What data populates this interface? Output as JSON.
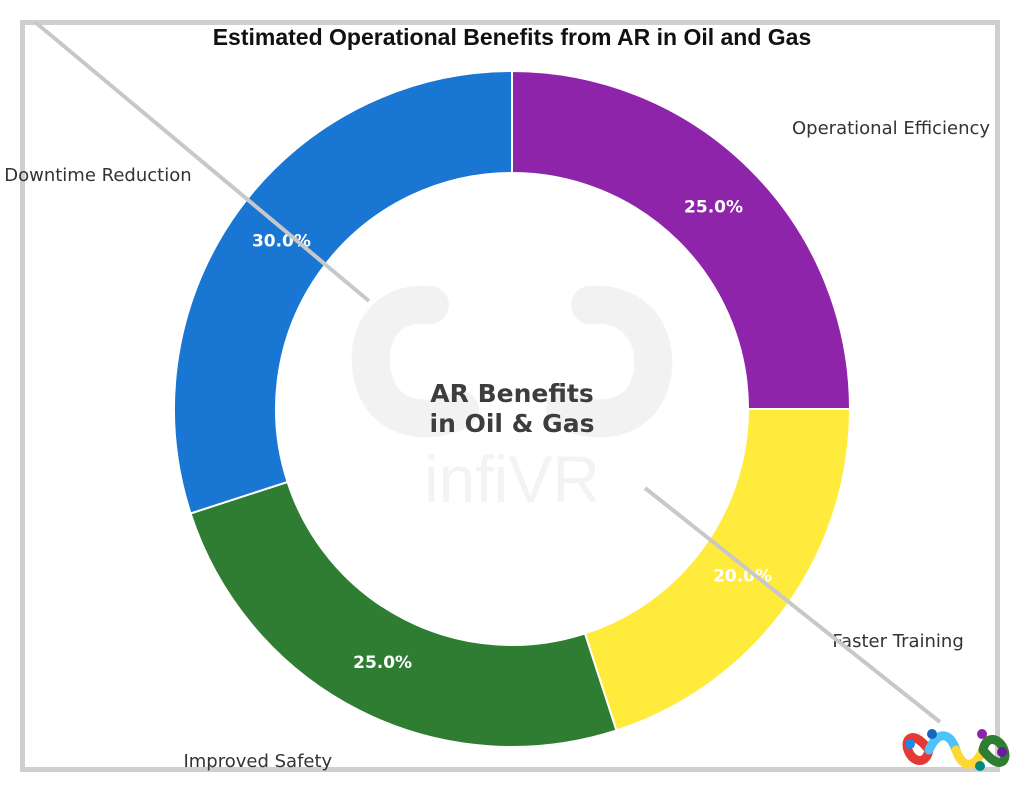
{
  "chart_data": {
    "type": "pie",
    "variant": "donut",
    "title": "Estimated Operational Benefits from AR in Oil and Gas",
    "center_text": [
      "AR Benefits",
      "in Oil & Gas"
    ],
    "watermark_text": "infiVR",
    "slices": [
      {
        "label": "Operational Efficiency",
        "value": 25.0,
        "pct_label": "25.0%",
        "color": "#8e24aa"
      },
      {
        "label": "Faster Training",
        "value": 20.0,
        "pct_label": "20.0%",
        "color": "#ffeb3b"
      },
      {
        "label": "Improved Safety",
        "value": 25.0,
        "pct_label": "25.0%",
        "color": "#2e7d32"
      },
      {
        "label": "Downtime Reduction",
        "value": 30.0,
        "pct_label": "30.0%",
        "color": "#1976d2"
      }
    ],
    "start_angle": "12 o'clock",
    "direction": "clockwise",
    "legend": "none"
  },
  "colors": {
    "frame": "#cfcfcf",
    "slice_border": "#ffffff",
    "percent_text": "#ffffff",
    "label_text": "#333333",
    "center_text": "#333333",
    "watermark": "#eeeeee",
    "diagonal_line": "#c8c8c8"
  },
  "logo": {
    "icon": "infinity-logo-icon"
  }
}
